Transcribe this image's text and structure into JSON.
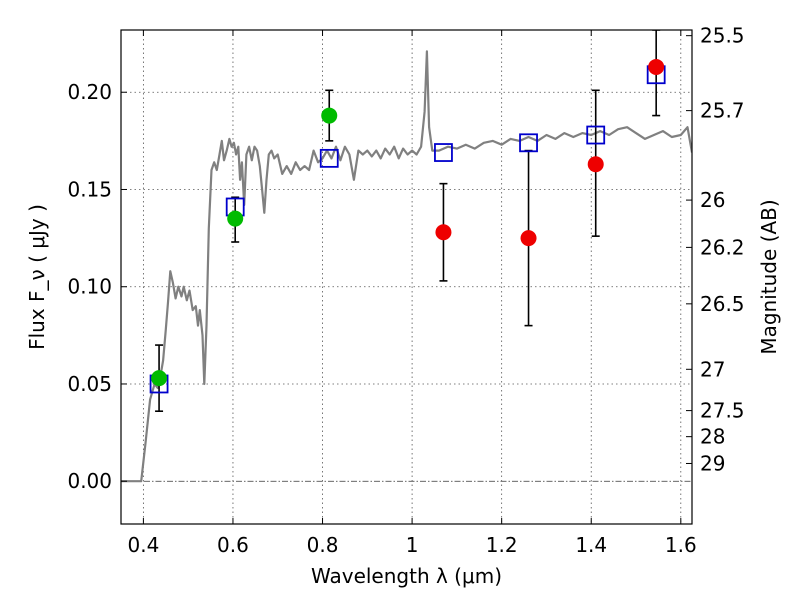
{
  "chart_data": {
    "type": "scatter",
    "xlabel": "Wavelength  λ (μm)",
    "ylabel": "Flux  F_ν  ( μJy )",
    "ylabel_right": "Magnitude (AB)",
    "xlim": [
      0.35,
      1.625
    ],
    "ylim": [
      -0.022,
      0.232
    ],
    "grid": true,
    "x_ticks": [
      {
        "value": 0.4,
        "label": "0.4"
      },
      {
        "value": 0.6,
        "label": "0.6"
      },
      {
        "value": 0.8,
        "label": "0.8"
      },
      {
        "value": 1.0,
        "label": "1"
      },
      {
        "value": 1.2,
        "label": "1.2"
      },
      {
        "value": 1.4,
        "label": "1.4"
      },
      {
        "value": 1.6,
        "label": "1.6"
      }
    ],
    "y_ticks": [
      {
        "value": 0.0,
        "label": "0.00"
      },
      {
        "value": 0.05,
        "label": "0.05"
      },
      {
        "value": 0.1,
        "label": "0.10"
      },
      {
        "value": 0.15,
        "label": "0.15"
      },
      {
        "value": 0.2,
        "label": "0.20"
      }
    ],
    "right_ticks": [
      {
        "value": 25.5,
        "label": "25.5"
      },
      {
        "value": 25.7,
        "label": "25.7"
      },
      {
        "value": 26,
        "label": "26"
      },
      {
        "value": 26.2,
        "label": "26.2"
      },
      {
        "value": 26.5,
        "label": "26.5"
      },
      {
        "value": 27,
        "label": "27"
      },
      {
        "value": 27.5,
        "label": "27.5"
      },
      {
        "value": 28,
        "label": "28"
      },
      {
        "value": 29,
        "label": "29"
      }
    ],
    "colors": {
      "model": "#808080",
      "model_photometry": "#0000cc",
      "detected": "#00bb00",
      "measured": "#ee0000",
      "errorbar": "#000000"
    },
    "series": [
      {
        "kind": "line",
        "points": [
          [
            0.35,
            0.0
          ],
          [
            0.395,
            0.0
          ],
          [
            0.405,
            0.02
          ],
          [
            0.415,
            0.042
          ],
          [
            0.425,
            0.05
          ],
          [
            0.432,
            0.048
          ],
          [
            0.438,
            0.054
          ],
          [
            0.444,
            0.062
          ],
          [
            0.45,
            0.078
          ],
          [
            0.455,
            0.092
          ],
          [
            0.46,
            0.108
          ],
          [
            0.466,
            0.102
          ],
          [
            0.472,
            0.094
          ],
          [
            0.478,
            0.1
          ],
          [
            0.485,
            0.095
          ],
          [
            0.49,
            0.1
          ],
          [
            0.497,
            0.093
          ],
          [
            0.503,
            0.098
          ],
          [
            0.51,
            0.088
          ],
          [
            0.517,
            0.09
          ],
          [
            0.522,
            0.08
          ],
          [
            0.526,
            0.088
          ],
          [
            0.532,
            0.075
          ],
          [
            0.536,
            0.05
          ],
          [
            0.541,
            0.08
          ],
          [
            0.546,
            0.13
          ],
          [
            0.552,
            0.16
          ],
          [
            0.558,
            0.164
          ],
          [
            0.564,
            0.16
          ],
          [
            0.57,
            0.168
          ],
          [
            0.575,
            0.175
          ],
          [
            0.58,
            0.165
          ],
          [
            0.586,
            0.17
          ],
          [
            0.592,
            0.176
          ],
          [
            0.597,
            0.172
          ],
          [
            0.602,
            0.174
          ],
          [
            0.607,
            0.168
          ],
          [
            0.612,
            0.172
          ],
          [
            0.616,
            0.155
          ],
          [
            0.62,
            0.164
          ],
          [
            0.625,
            0.142
          ],
          [
            0.63,
            0.168
          ],
          [
            0.636,
            0.172
          ],
          [
            0.642,
            0.165
          ],
          [
            0.648,
            0.172
          ],
          [
            0.654,
            0.17
          ],
          [
            0.66,
            0.162
          ],
          [
            0.665,
            0.15
          ],
          [
            0.67,
            0.138
          ],
          [
            0.675,
            0.155
          ],
          [
            0.68,
            0.168
          ],
          [
            0.686,
            0.17
          ],
          [
            0.692,
            0.166
          ],
          [
            0.7,
            0.168
          ],
          [
            0.71,
            0.158
          ],
          [
            0.72,
            0.162
          ],
          [
            0.73,
            0.158
          ],
          [
            0.74,
            0.164
          ],
          [
            0.75,
            0.16
          ],
          [
            0.76,
            0.162
          ],
          [
            0.77,
            0.16
          ],
          [
            0.78,
            0.17
          ],
          [
            0.79,
            0.164
          ],
          [
            0.8,
            0.166
          ],
          [
            0.81,
            0.17
          ],
          [
            0.82,
            0.166
          ],
          [
            0.83,
            0.172
          ],
          [
            0.84,
            0.165
          ],
          [
            0.85,
            0.172
          ],
          [
            0.86,
            0.168
          ],
          [
            0.87,
            0.155
          ],
          [
            0.88,
            0.17
          ],
          [
            0.89,
            0.168
          ],
          [
            0.9,
            0.17
          ],
          [
            0.91,
            0.167
          ],
          [
            0.92,
            0.17
          ],
          [
            0.93,
            0.166
          ],
          [
            0.94,
            0.171
          ],
          [
            0.95,
            0.168
          ],
          [
            0.96,
            0.172
          ],
          [
            0.97,
            0.166
          ],
          [
            0.98,
            0.171
          ],
          [
            0.99,
            0.168
          ],
          [
            1.0,
            0.17
          ],
          [
            1.01,
            0.168
          ],
          [
            1.02,
            0.172
          ],
          [
            1.028,
            0.19
          ],
          [
            1.033,
            0.221
          ],
          [
            1.038,
            0.182
          ],
          [
            1.045,
            0.17
          ],
          [
            1.06,
            0.17
          ],
          [
            1.08,
            0.172
          ],
          [
            1.1,
            0.171
          ],
          [
            1.12,
            0.173
          ],
          [
            1.14,
            0.171
          ],
          [
            1.16,
            0.174
          ],
          [
            1.18,
            0.175
          ],
          [
            1.2,
            0.173
          ],
          [
            1.22,
            0.176
          ],
          [
            1.24,
            0.175
          ],
          [
            1.26,
            0.177
          ],
          [
            1.28,
            0.175
          ],
          [
            1.3,
            0.178
          ],
          [
            1.32,
            0.176
          ],
          [
            1.34,
            0.179
          ],
          [
            1.36,
            0.177
          ],
          [
            1.38,
            0.179
          ],
          [
            1.4,
            0.178
          ],
          [
            1.42,
            0.18
          ],
          [
            1.44,
            0.178
          ],
          [
            1.46,
            0.181
          ],
          [
            1.48,
            0.182
          ],
          [
            1.5,
            0.179
          ],
          [
            1.52,
            0.176
          ],
          [
            1.54,
            0.178
          ],
          [
            1.56,
            0.18
          ],
          [
            1.58,
            0.177
          ],
          [
            1.6,
            0.178
          ],
          [
            1.615,
            0.182
          ],
          [
            1.625,
            0.169
          ]
        ]
      },
      {
        "kind": "squares",
        "points": [
          [
            0.435,
            0.05
          ],
          [
            0.605,
            0.141
          ],
          [
            0.815,
            0.166
          ],
          [
            1.07,
            0.169
          ],
          [
            1.26,
            0.174
          ],
          [
            1.41,
            0.178
          ],
          [
            1.545,
            0.209
          ]
        ]
      },
      {
        "kind": "circles-green",
        "points": [
          {
            "x": 0.435,
            "y": 0.053,
            "lo": 0.036,
            "hi": 0.07
          },
          {
            "x": 0.605,
            "y": 0.135,
            "lo": 0.123,
            "hi": 0.146
          },
          {
            "x": 0.815,
            "y": 0.188,
            "lo": 0.175,
            "hi": 0.201
          }
        ]
      },
      {
        "kind": "circles-red",
        "points": [
          {
            "x": 1.07,
            "y": 0.128,
            "lo": 0.103,
            "hi": 0.153
          },
          {
            "x": 1.26,
            "y": 0.125,
            "lo": 0.08,
            "hi": 0.17
          },
          {
            "x": 1.41,
            "y": 0.163,
            "lo": 0.126,
            "hi": 0.201
          },
          {
            "x": 1.545,
            "y": 0.213,
            "lo": 0.188,
            "hi": 0.232
          }
        ]
      }
    ]
  }
}
